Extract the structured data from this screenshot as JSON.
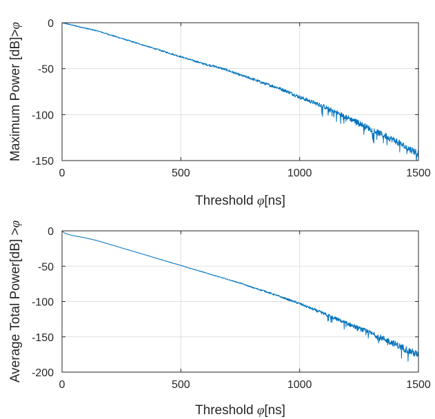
{
  "chart_data": [
    {
      "type": "line",
      "title": "",
      "xlabel": "Threshold",
      "xlabel_symbol": "φ",
      "xlabel_unit": "[ns]",
      "ylabel": "Maximum Power [dB]>",
      "ylabel_symbol": "φ",
      "xlim": [
        0,
        1500
      ],
      "ylim": [
        -150,
        0
      ],
      "xticks": [
        0,
        500,
        1000,
        1500
      ],
      "yticks": [
        -150,
        -100,
        -50,
        0
      ],
      "grid": true,
      "color": "#0072BD",
      "series": [
        {
          "x": [
            0,
            50,
            100,
            150,
            200,
            250,
            300,
            350,
            400,
            450,
            500,
            550,
            600,
            650,
            700,
            750,
            800,
            850,
            900,
            950,
            1000,
            1050,
            1100,
            1150,
            1200,
            1250,
            1300,
            1350,
            1400,
            1450,
            1500
          ],
          "y": [
            0,
            -3,
            -6,
            -9,
            -13,
            -17,
            -21,
            -25,
            -29,
            -33,
            -37,
            -41,
            -45,
            -48,
            -52,
            -57,
            -61,
            -66,
            -70,
            -75,
            -81,
            -86,
            -91,
            -97,
            -103,
            -109,
            -116,
            -122,
            -128,
            -136,
            -142
          ]
        }
      ]
    },
    {
      "type": "line",
      "title": "",
      "xlabel": "Threshold",
      "xlabel_symbol": "φ",
      "xlabel_unit": "[ns]",
      "ylabel": "Average Total Power[dB] >",
      "ylabel_symbol": "φ",
      "xlim": [
        0,
        1500
      ],
      "ylim": [
        -200,
        0
      ],
      "xticks": [
        0,
        500,
        1000,
        1500
      ],
      "yticks": [
        -200,
        -150,
        -100,
        -50,
        0
      ],
      "grid": true,
      "color": "#0072BD",
      "series": [
        {
          "x": [
            0,
            10,
            25,
            50,
            100,
            150,
            200,
            250,
            300,
            350,
            400,
            450,
            500,
            550,
            600,
            650,
            700,
            750,
            800,
            850,
            900,
            950,
            1000,
            1050,
            1100,
            1150,
            1200,
            1250,
            1300,
            1350,
            1400,
            1450,
            1500
          ],
          "y": [
            0,
            -3,
            -5,
            -7,
            -10,
            -14,
            -19,
            -24,
            -29,
            -34,
            -39,
            -44,
            -49,
            -54,
            -59,
            -64,
            -69,
            -74,
            -80,
            -85,
            -91,
            -97,
            -103,
            -110,
            -117,
            -124,
            -131,
            -138,
            -145,
            -152,
            -160,
            -168,
            -176
          ]
        }
      ]
    }
  ]
}
